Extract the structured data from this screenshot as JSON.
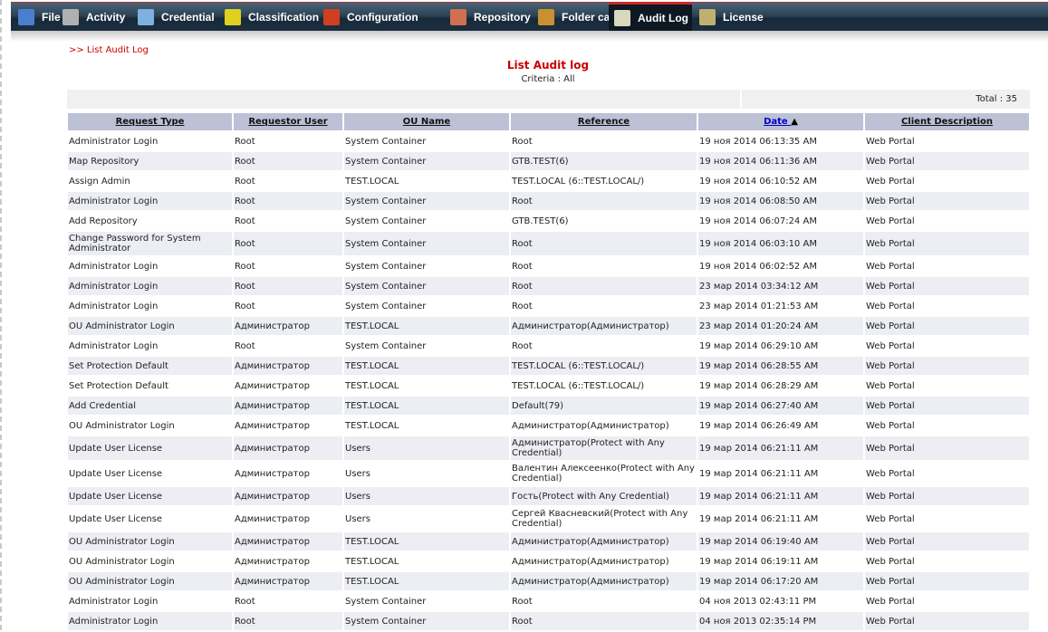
{
  "nav": [
    {
      "label": "File",
      "icon": "file-icon",
      "color": "#4a7fd0"
    },
    {
      "label": "Activity",
      "icon": "gears-icon",
      "color": "#b0b0b0"
    },
    {
      "label": "Credential",
      "icon": "id-card-icon",
      "color": "#7fb0e0"
    },
    {
      "label": "Classification",
      "icon": "binders-icon",
      "color": "#e0d020"
    },
    {
      "label": "Configuration",
      "icon": "tools-icon",
      "color": "#d04020"
    },
    {
      "label": "Repository",
      "icon": "database-icon",
      "color": "#d07050"
    },
    {
      "label": "Folder cabinet",
      "icon": "cabinet-icon",
      "color": "#c89030"
    },
    {
      "label": "Audit Log",
      "icon": "notebook-icon",
      "color": "#d8d8c0",
      "active": true
    },
    {
      "label": "License",
      "icon": "key-icon",
      "color": "#c0b070"
    }
  ],
  "breadcrumb": ">> List Audit Log",
  "title": "List Audit log",
  "criteria": "Criteria : All",
  "total": "Total : 35",
  "columns": [
    "Request Type",
    "Requestor User",
    "OU Name",
    "Reference",
    "Date",
    "Client Description"
  ],
  "sort_indicator": "▲",
  "rows": [
    [
      "Administrator Login",
      "Root",
      "System Container",
      "Root",
      "19 ноя 2014 06:13:35 AM",
      "Web Portal"
    ],
    [
      "Map Repository",
      "Root",
      "System Container",
      "GTB.TEST(6)",
      "19 ноя 2014 06:11:36 AM",
      "Web Portal"
    ],
    [
      "Assign Admin",
      "Root",
      "TEST.LOCAL",
      "TEST.LOCAL (6::TEST.LOCAL/)",
      "19 ноя 2014 06:10:52 AM",
      "Web Portal"
    ],
    [
      "Administrator Login",
      "Root",
      "System Container",
      "Root",
      "19 ноя 2014 06:08:50 AM",
      "Web Portal"
    ],
    [
      "Add Repository",
      "Root",
      "System Container",
      "GTB.TEST(6)",
      "19 ноя 2014 06:07:24 AM",
      "Web Portal"
    ],
    [
      "Change Password for System Administrator",
      "Root",
      "System Container",
      "Root",
      "19 ноя 2014 06:03:10 AM",
      "Web Portal"
    ],
    [
      "Administrator Login",
      "Root",
      "System Container",
      "Root",
      "19 ноя 2014 06:02:52 AM",
      "Web Portal"
    ],
    [
      "Administrator Login",
      "Root",
      "System Container",
      "Root",
      "23 мар 2014 03:34:12 AM",
      "Web Portal"
    ],
    [
      "Administrator Login",
      "Root",
      "System Container",
      "Root",
      "23 мар 2014 01:21:53 AM",
      "Web Portal"
    ],
    [
      "OU Administrator Login",
      "Администратор",
      "TEST.LOCAL",
      "Администратор(Администратор)",
      "23 мар 2014 01:20:24 AM",
      "Web Portal"
    ],
    [
      "Administrator Login",
      "Root",
      "System Container",
      "Root",
      "19 мар 2014 06:29:10 AM",
      "Web Portal"
    ],
    [
      "Set Protection Default",
      "Администратор",
      "TEST.LOCAL",
      "TEST.LOCAL (6::TEST.LOCAL/)",
      "19 мар 2014 06:28:55 AM",
      "Web Portal"
    ],
    [
      "Set Protection Default",
      "Администратор",
      "TEST.LOCAL",
      "TEST.LOCAL (6::TEST.LOCAL/)",
      "19 мар 2014 06:28:29 AM",
      "Web Portal"
    ],
    [
      "Add Credential",
      "Администратор",
      "TEST.LOCAL",
      "Default(79)",
      "19 мар 2014 06:27:40 AM",
      "Web Portal"
    ],
    [
      "OU Administrator Login",
      "Администратор",
      "TEST.LOCAL",
      "Администратор(Администратор)",
      "19 мар 2014 06:26:49 AM",
      "Web Portal"
    ],
    [
      "Update User License",
      "Администратор",
      "Users",
      "Администратор(Protect with Any Credential)",
      "19 мар 2014 06:21:11 AM",
      "Web Portal"
    ],
    [
      "Update User License",
      "Администратор",
      "Users",
      "Валентин Алексеенко(Protect with Any Credential)",
      "19 мар 2014 06:21:11 AM",
      "Web Portal"
    ],
    [
      "Update User License",
      "Администратор",
      "Users",
      "Гость(Protect with Any Credential)",
      "19 мар 2014 06:21:11 AM",
      "Web Portal"
    ],
    [
      "Update User License",
      "Администратор",
      "Users",
      "Сергей Квасневский(Protect with Any Credential)",
      "19 мар 2014 06:21:11 AM",
      "Web Portal"
    ],
    [
      "OU Administrator Login",
      "Администратор",
      "TEST.LOCAL",
      "Администратор(Администратор)",
      "19 мар 2014 06:19:40 AM",
      "Web Portal"
    ],
    [
      "OU Administrator Login",
      "Администратор",
      "TEST.LOCAL",
      "Администратор(Администратор)",
      "19 мар 2014 06:19:11 AM",
      "Web Portal"
    ],
    [
      "OU Administrator Login",
      "Администратор",
      "TEST.LOCAL",
      "Администратор(Администратор)",
      "19 мар 2014 06:17:20 AM",
      "Web Portal"
    ],
    [
      "Administrator Login",
      "Root",
      "System Container",
      "Root",
      "04 ноя 2013 02:43:11 PM",
      "Web Portal"
    ],
    [
      "Administrator Login",
      "Root",
      "System Container",
      "Root",
      "04 ноя 2013 02:35:14 PM",
      "Web Portal"
    ]
  ]
}
